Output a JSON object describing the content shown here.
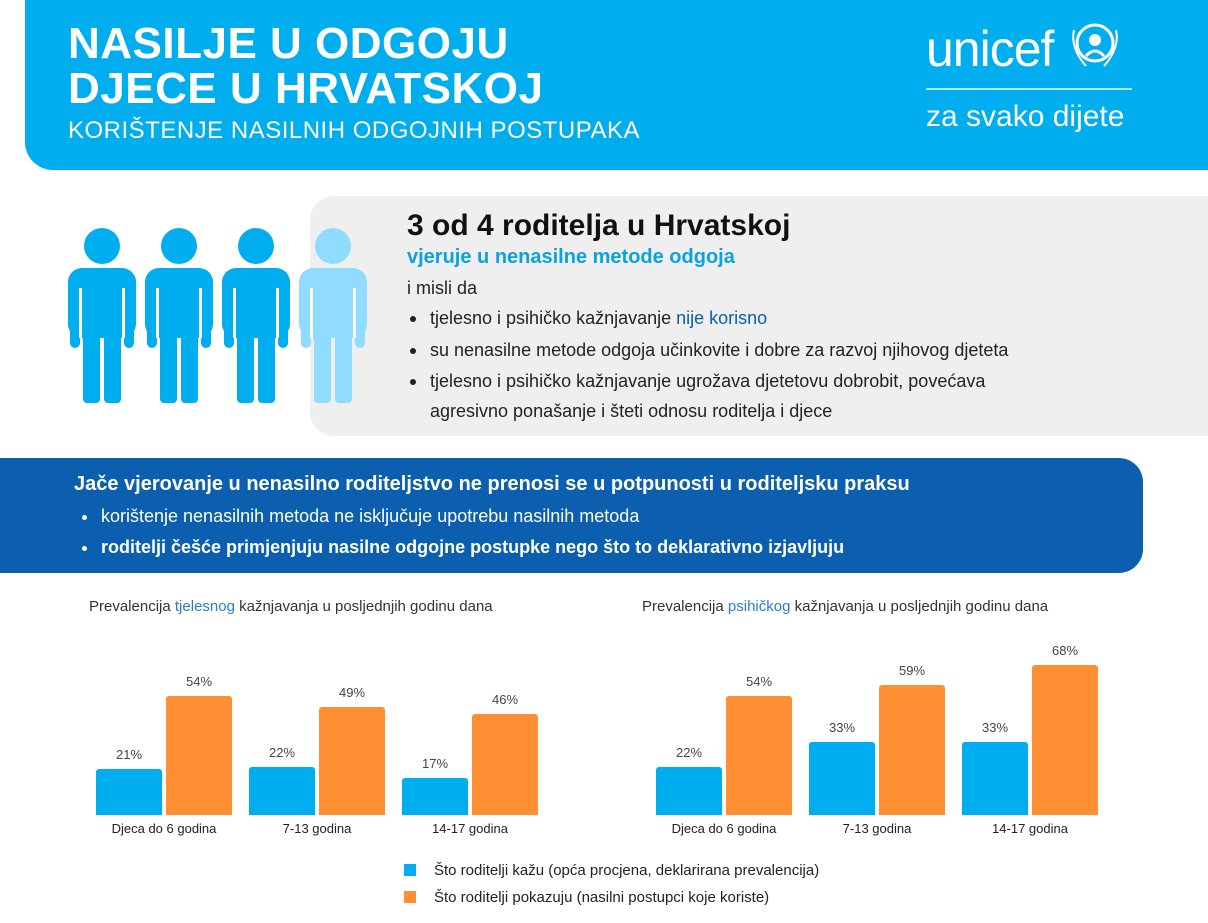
{
  "header": {
    "title_line1": "NASILJE U ODGOJU",
    "title_line2": "DJECE U HRVATSKOJ",
    "subtitle": "KORIŠTENJE NASILNIH ODGOJNIH POSTUPAKA",
    "logo": "unicef",
    "tagline": "za svako dijete"
  },
  "intro": {
    "headline": "3 od 4 roditelja u Hrvatskoj",
    "highlight": "vjeruje u nenasilne metode odgoja",
    "lead": "i misli da",
    "bullets": [
      {
        "pre": "tjelesno i psihičko kažnjavanje ",
        "hl": "nije korisno"
      },
      {
        "text": "su nenasilne metode odgoja učinkovite i dobre za razvoj njihovog djeteta"
      },
      {
        "line1": "tjelesno i psihičko kažnjavanje ugrožava djetetovu dobrobit, povećava",
        "line2": "agresivno ponašanje i šteti odnosu roditelja i djece"
      }
    ]
  },
  "band": {
    "title": "Jače vjerovanje u nenasilno roditeljstvo ne prenosi se u potpunosti u roditeljsku praksu",
    "bullets": [
      "korištenje nenasilnih metoda ne isključuje upotrebu nasilnih metoda",
      "roditelji češće primjenjuju nasilne odgojne postupke nego što to deklarativno izjavljuju"
    ]
  },
  "colors": {
    "blue": "#00adee",
    "orange": "#ff8f32",
    "dark_blue": "#0b5fae"
  },
  "chart_data": [
    {
      "type": "bar",
      "title_pre": "Prevalencija ",
      "title_hl": "tjelesnog",
      "title_post": " kažnjavanja u posljednjih godinu dana",
      "categories": [
        "Djeca do 6 godina",
        "7-13 godina",
        "14-17 godina"
      ],
      "series": [
        {
          "name": "Što roditelji kažu (opća procjena, deklarirana prevalencija)",
          "values": [
            21,
            22,
            17
          ],
          "labels": [
            "21%",
            "22%",
            "17%"
          ]
        },
        {
          "name": "Što roditelji pokazuju (nasilni postupci koje koriste)",
          "values": [
            54,
            49,
            46
          ],
          "labels": [
            "54%",
            "49%",
            "46%"
          ]
        }
      ]
    },
    {
      "type": "bar",
      "title_pre": "Prevalencija ",
      "title_hl": "psihičkog",
      "title_post": " kažnjavanja u posljednjih godinu dana",
      "categories": [
        "Djeca do 6 godina",
        "7-13 godina",
        "14-17 godina"
      ],
      "series": [
        {
          "name": "Što roditelji kažu (opća procjena, deklarirana prevalencija)",
          "values": [
            22,
            33,
            33
          ],
          "labels": [
            "22%",
            "33%",
            "33%"
          ]
        },
        {
          "name": "Što roditelji pokazuju (nasilni postupci koje koriste)",
          "values": [
            54,
            59,
            68
          ],
          "labels": [
            "54%",
            "59%",
            "68%"
          ]
        }
      ]
    }
  ],
  "legend": [
    "Što roditelji kažu (opća procjena, deklarirana prevalencija)",
    "Što roditelji pokazuju (nasilni postupci koje koriste)"
  ]
}
